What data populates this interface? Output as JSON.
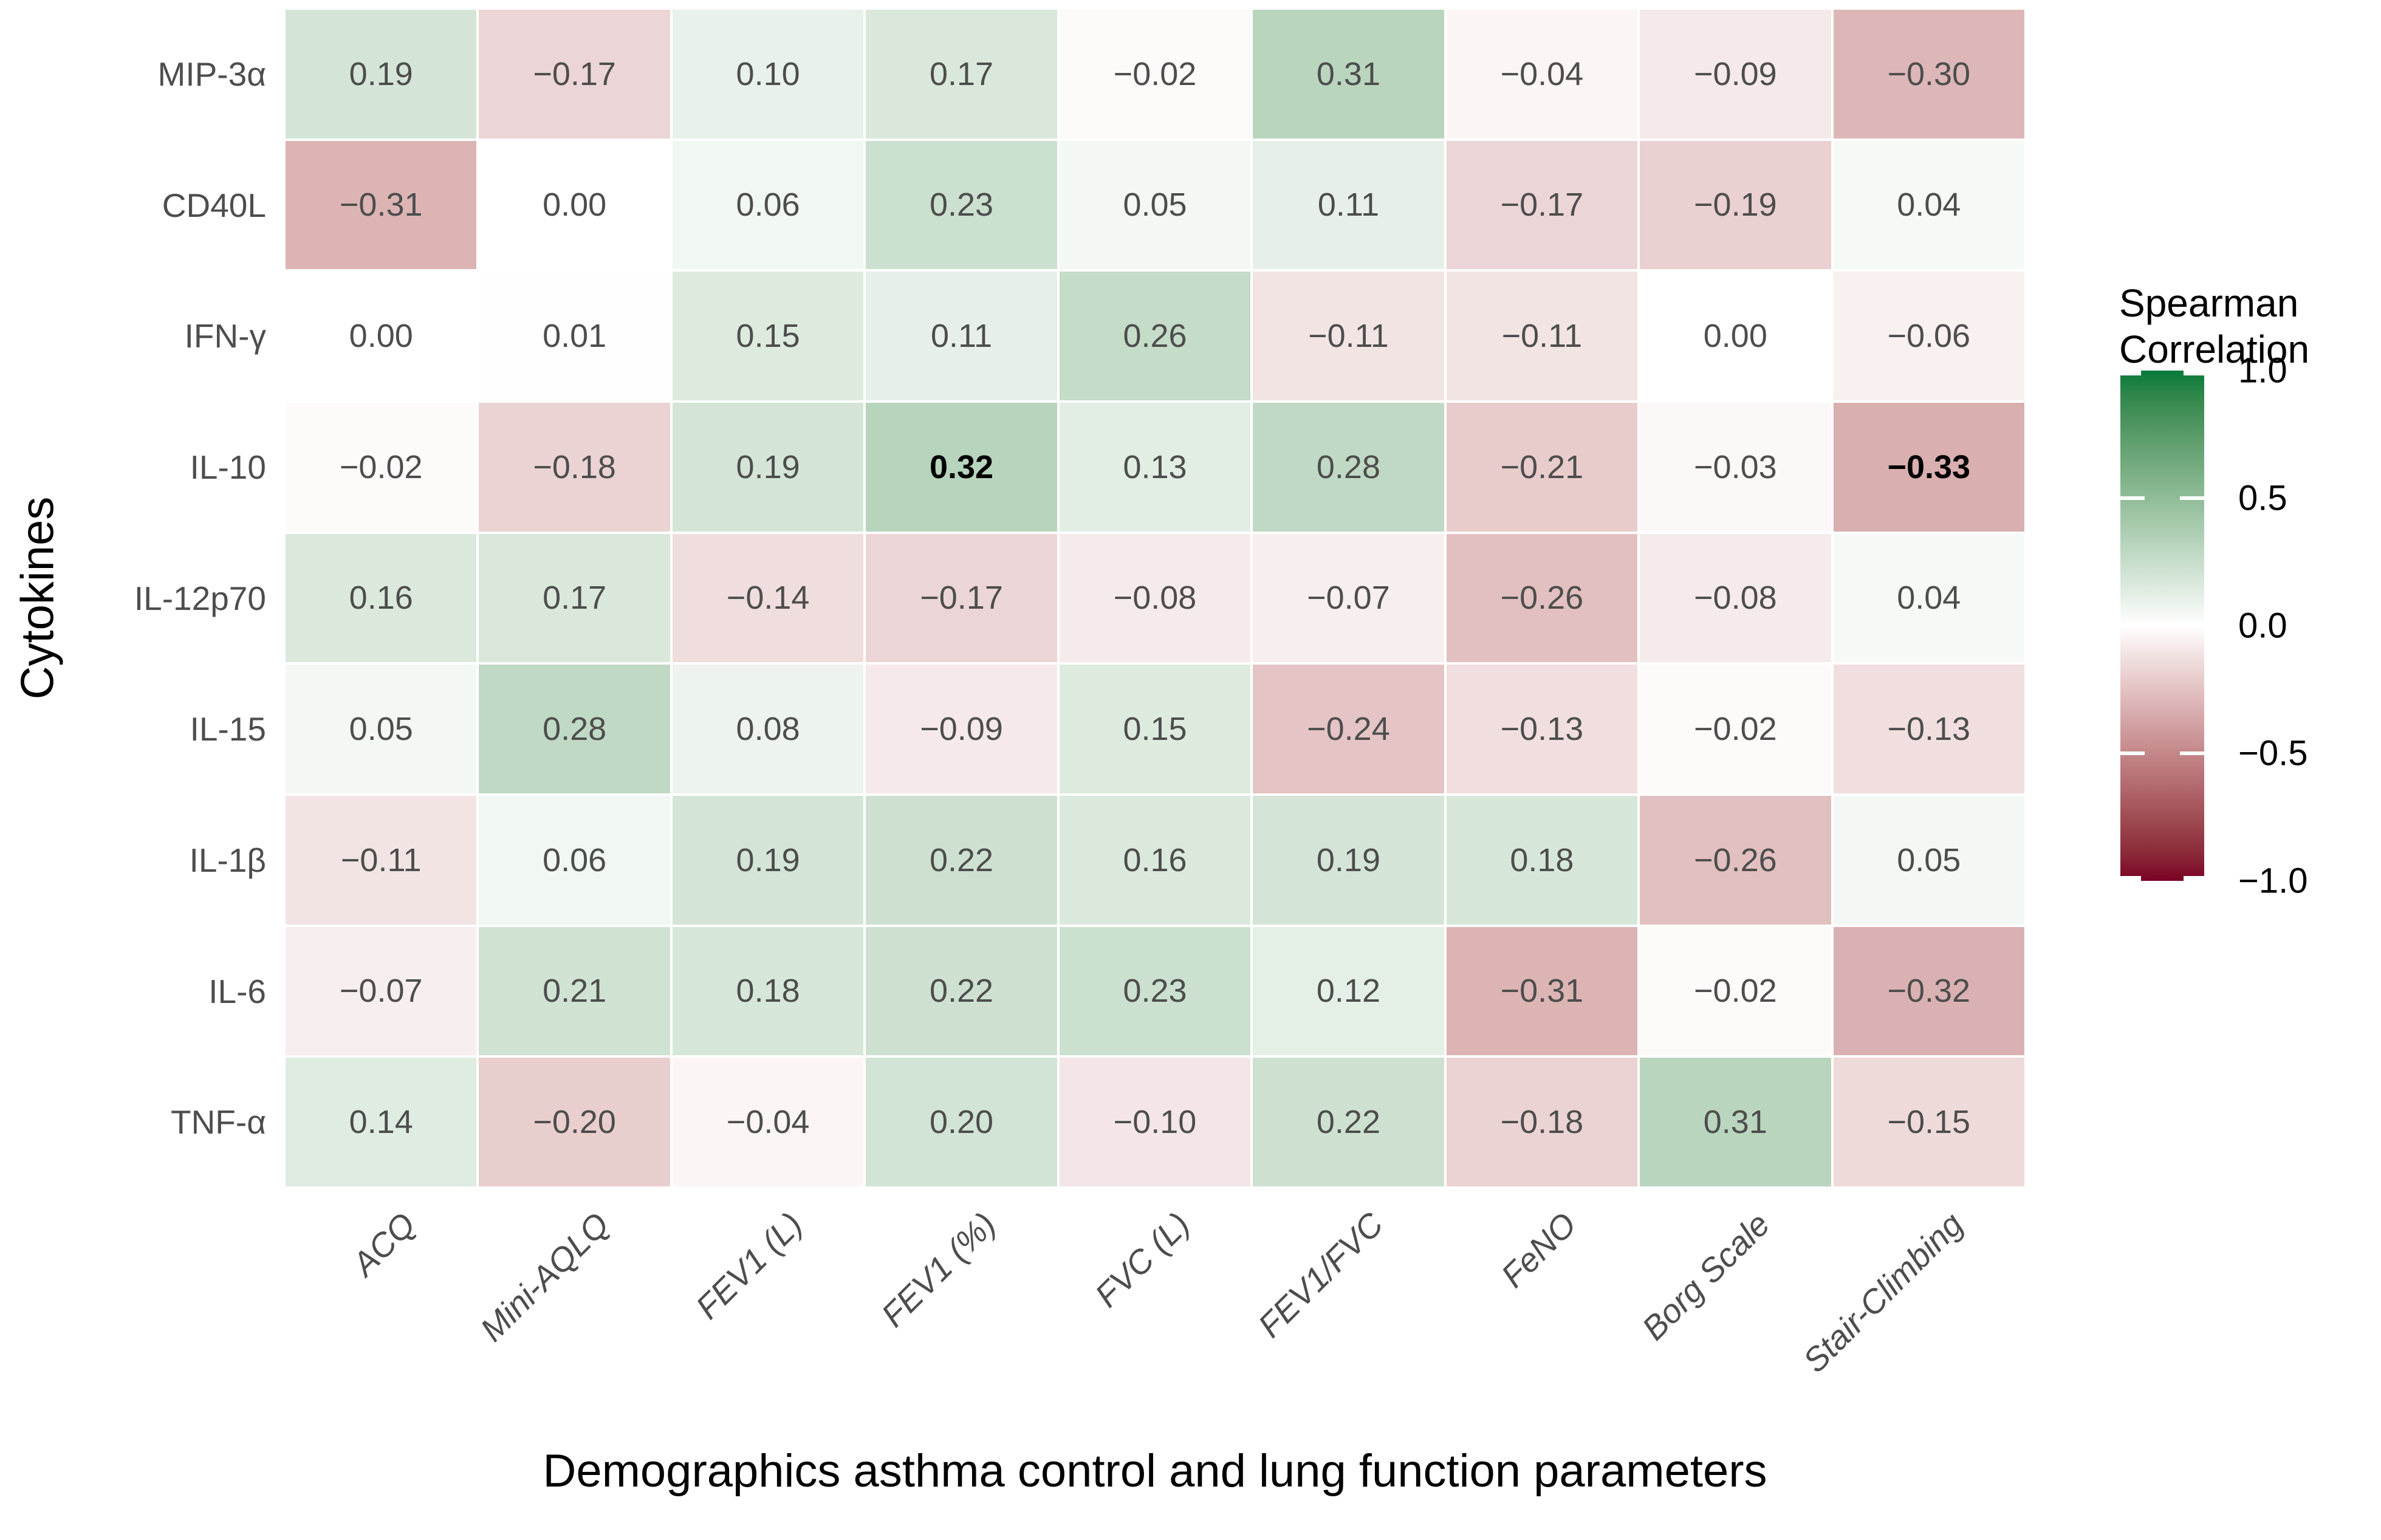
{
  "chart_data": {
    "type": "heatmap",
    "xlabel": "Demographics asthma control and lung function parameters",
    "ylabel": "Cytokines",
    "x_categories": [
      "ACQ",
      "Mini-AQLQ",
      "FEV1 (L)",
      "FEV1 (%)",
      "FVC (L)",
      "FEV1/FVC",
      "FeNO",
      "Borg Scale",
      "Stair-Climbing"
    ],
    "y_categories": [
      "MIP-3α",
      "CD40L",
      "IFN-γ",
      "IL-10",
      "IL-12p70",
      "IL-15",
      "IL-1β",
      "IL-6",
      "TNF-α"
    ],
    "values": [
      [
        0.19,
        -0.17,
        0.1,
        0.17,
        -0.02,
        0.31,
        -0.04,
        -0.09,
        -0.3
      ],
      [
        -0.31,
        0.0,
        0.06,
        0.23,
        0.05,
        0.11,
        -0.17,
        -0.19,
        0.04
      ],
      [
        0.0,
        0.01,
        0.15,
        0.11,
        0.26,
        -0.11,
        -0.11,
        0.0,
        -0.06
      ],
      [
        -0.02,
        -0.18,
        0.19,
        0.32,
        0.13,
        0.28,
        -0.21,
        -0.03,
        -0.33
      ],
      [
        0.16,
        0.17,
        -0.14,
        -0.17,
        -0.08,
        -0.07,
        -0.26,
        -0.08,
        0.04
      ],
      [
        0.05,
        0.28,
        0.08,
        -0.09,
        0.15,
        -0.24,
        -0.13,
        -0.02,
        -0.13
      ],
      [
        -0.11,
        0.06,
        0.19,
        0.22,
        0.16,
        0.19,
        0.18,
        -0.26,
        0.05
      ],
      [
        -0.07,
        0.21,
        0.18,
        0.22,
        0.23,
        0.12,
        -0.31,
        -0.02,
        -0.32
      ],
      [
        0.14,
        -0.2,
        -0.04,
        0.2,
        -0.1,
        0.22,
        -0.18,
        0.31,
        -0.15
      ]
    ],
    "bold_cells": [
      [
        3,
        3
      ],
      [
        3,
        8
      ]
    ],
    "grid": true,
    "legend": {
      "title": "Spearman\nCorrelation",
      "position": "right",
      "ticks": [
        1.0,
        0.5,
        0.0,
        -0.5,
        -1.0
      ],
      "tick_labels": [
        "1.0",
        "0.5",
        "0.0",
        "-0.5",
        "-1.0"
      ],
      "range": [
        -1.0,
        1.0
      ]
    },
    "colorscale": {
      "max_color": "#077a3a",
      "mid_color": "#ffffff",
      "min_color": "#7a0225",
      "interpolation": "lab",
      "domain": [
        -1,
        1
      ]
    }
  },
  "colors": {
    "cell_text": "#4d4d4d",
    "bold_cell_text": "#000000",
    "axis_tick_text": "#4d4d4d",
    "axis_title_text": "#000000",
    "gridline": "#ffffff",
    "background": "#ffffff"
  }
}
